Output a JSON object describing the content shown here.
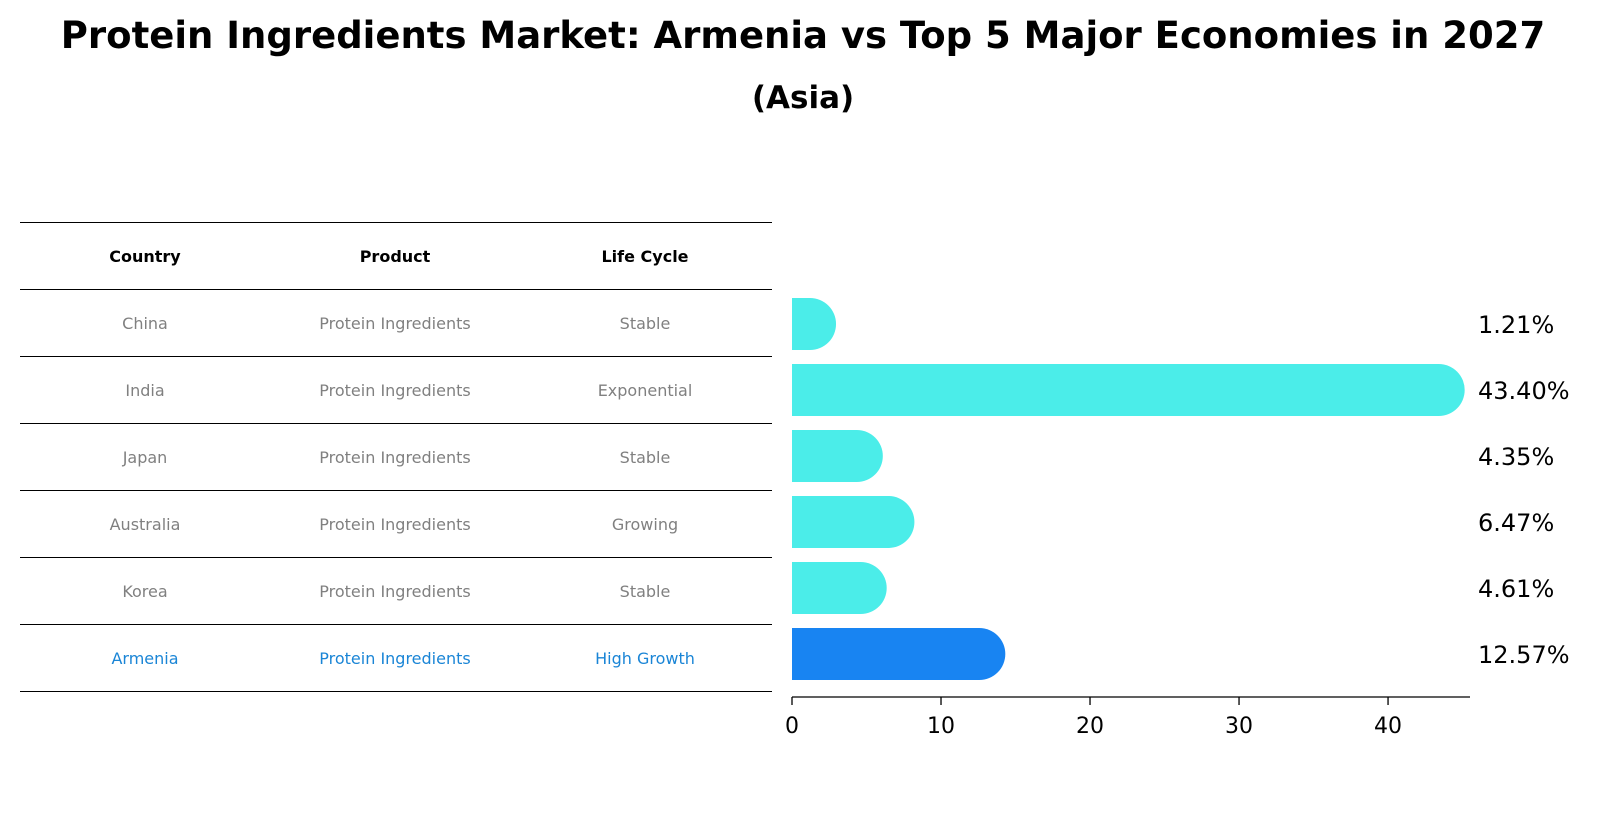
{
  "title": "Protein Ingredients Market: Armenia vs Top 5 Major Economies in 2027",
  "subtitle": "(Asia)",
  "table": {
    "headers": [
      "Country",
      "Product",
      "Life Cycle"
    ],
    "rows": [
      {
        "country": "China",
        "product": "Protein Ingredients",
        "life_cycle": "Stable"
      },
      {
        "country": "India",
        "product": "Protein Ingredients",
        "life_cycle": "Exponential"
      },
      {
        "country": "Japan",
        "product": "Protein Ingredients",
        "life_cycle": "Stable"
      },
      {
        "country": "Australia",
        "product": "Protein Ingredients",
        "life_cycle": "Growing"
      },
      {
        "country": "Korea",
        "product": "Protein Ingredients",
        "life_cycle": "Stable"
      },
      {
        "country": "Armenia",
        "product": "Protein Ingredients",
        "life_cycle": "High Growth"
      }
    ]
  },
  "colors": {
    "bar": "#4bede9",
    "highlight_bar": "#1884f2",
    "highlight_text": "#1a85d6",
    "row_text": "#808080"
  },
  "chart_data": {
    "type": "bar",
    "orientation": "horizontal",
    "categories": [
      "China",
      "India",
      "Japan",
      "Australia",
      "Korea",
      "Armenia"
    ],
    "values": [
      1.21,
      43.4,
      4.35,
      6.47,
      4.61,
      12.57
    ],
    "value_labels": [
      "1.21%",
      "43.40%",
      "4.35%",
      "6.47%",
      "4.61%",
      "12.57%"
    ],
    "highlight": "Armenia",
    "xlim": [
      0,
      45.5
    ],
    "xticks": [
      0,
      10,
      20,
      30,
      40
    ],
    "xlabel": "",
    "ylabel": ""
  }
}
